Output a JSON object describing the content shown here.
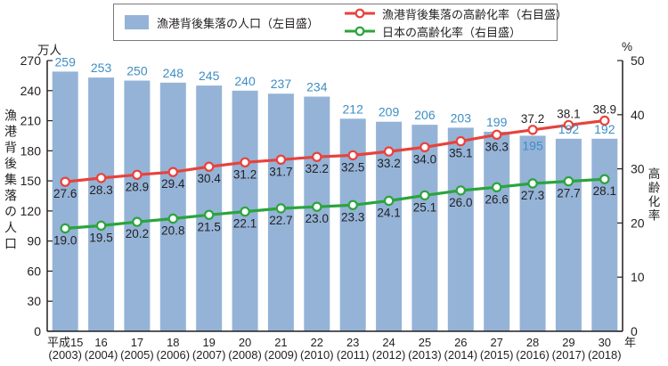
{
  "legend": {
    "items": [
      {
        "id": "population",
        "label": "漁港背後集落の人口（左目盛）",
        "swatch": "bar",
        "color": "#94B3D7"
      },
      {
        "id": "port-aging-rate",
        "label": "漁港背後集落の高齢化率（右目盛）",
        "swatch": "line-marker",
        "color": "#E8423B"
      },
      {
        "id": "japan-aging-rate",
        "label": "日本の高齢化率（右目盛）",
        "swatch": "line-marker",
        "color": "#2BA43C"
      }
    ]
  },
  "axes": {
    "left_unit": "万人",
    "right_unit": "%",
    "left_title": "漁港背後集落の人口",
    "right_title": "高齢化率",
    "x_unit": "年",
    "left_ticks": [
      0,
      30,
      60,
      90,
      120,
      150,
      180,
      210,
      240,
      270
    ],
    "right_ticks": [
      0,
      10,
      20,
      30,
      40,
      50
    ]
  },
  "colors": {
    "bar_fill": "#94B3D7",
    "bar_value_label": "#3E8EC4",
    "red_line": "#E8423B",
    "green_line": "#2BA43C",
    "axis_line": "#231F20",
    "text": "#231F20"
  },
  "chart_data": {
    "type": "bar",
    "legend_position": "top",
    "grid": false,
    "left_ylim": [
      0,
      270
    ],
    "right_ylim": [
      0,
      50
    ],
    "categories": [
      {
        "era": "平成15",
        "year": "(2003)"
      },
      {
        "era": "16",
        "year": "(2004)"
      },
      {
        "era": "17",
        "year": "(2005)"
      },
      {
        "era": "18",
        "year": "(2006)"
      },
      {
        "era": "19",
        "year": "(2007)"
      },
      {
        "era": "20",
        "year": "(2008)"
      },
      {
        "era": "21",
        "year": "(2009)"
      },
      {
        "era": "22",
        "year": "(2010)"
      },
      {
        "era": "23",
        "year": "(2011)"
      },
      {
        "era": "24",
        "year": "(2012)"
      },
      {
        "era": "25",
        "year": "(2013)"
      },
      {
        "era": "26",
        "year": "(2014)"
      },
      {
        "era": "27",
        "year": "(2015)"
      },
      {
        "era": "28",
        "year": "(2016)"
      },
      {
        "era": "29",
        "year": "(2017)"
      },
      {
        "era": "30",
        "year": "(2018)"
      }
    ],
    "series": [
      {
        "name": "漁港背後集落の人口（左目盛）",
        "type": "bar",
        "axis": "left",
        "unit": "万人",
        "color": "#94B3D7",
        "label_color": "#3E8EC4",
        "values": [
          259,
          253,
          250,
          248,
          245,
          240,
          237,
          234,
          212,
          209,
          206,
          203,
          199,
          195,
          192,
          192
        ]
      },
      {
        "name": "漁港背後集落の高齢化率（右目盛）",
        "type": "line",
        "axis": "right",
        "unit": "%",
        "color": "#E8423B",
        "values": [
          27.6,
          28.3,
          28.9,
          29.4,
          30.4,
          31.2,
          31.7,
          32.2,
          32.5,
          33.2,
          34.0,
          35.1,
          36.3,
          37.2,
          38.1,
          38.9
        ]
      },
      {
        "name": "日本の高齢化率（右目盛）",
        "type": "line",
        "axis": "right",
        "unit": "%",
        "color": "#2BA43C",
        "values": [
          19.0,
          19.5,
          20.2,
          20.8,
          21.5,
          22.1,
          22.7,
          23.0,
          23.3,
          24.1,
          25.1,
          26.0,
          26.6,
          27.3,
          27.7,
          28.1
        ]
      }
    ]
  }
}
